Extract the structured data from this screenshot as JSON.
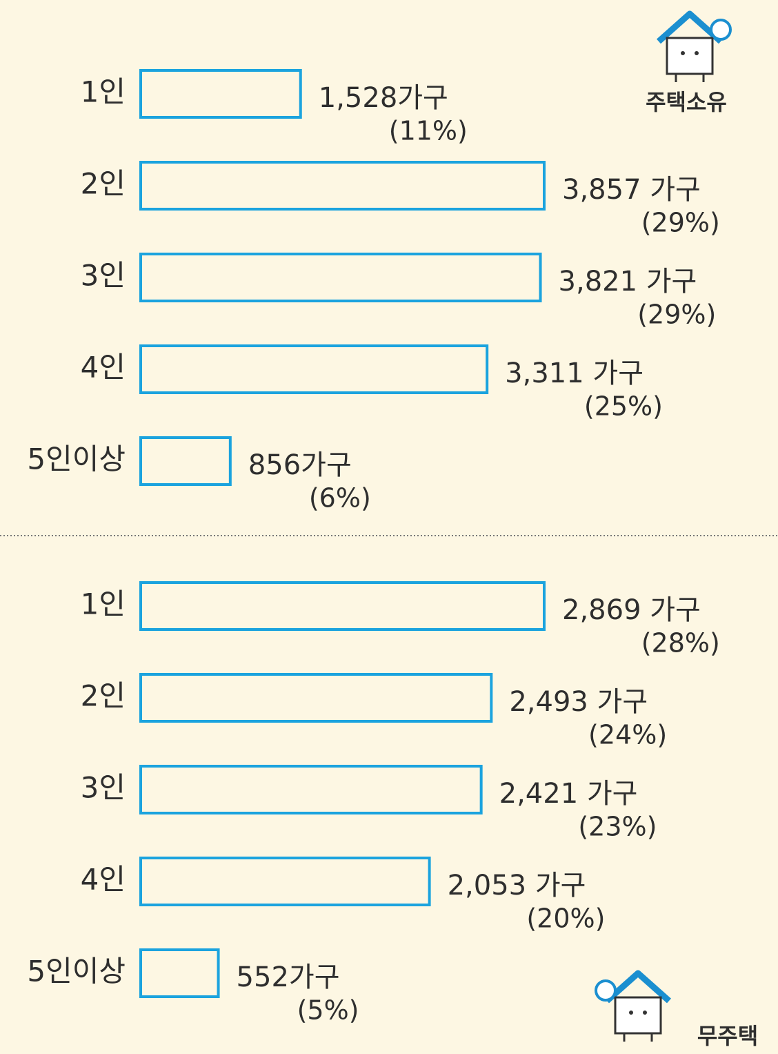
{
  "chart_data": [
    {
      "type": "bar",
      "title": "주택소유",
      "categories": [
        "1인",
        "2인",
        "3인",
        "4인",
        "5인이상"
      ],
      "values": [
        1528,
        3857,
        3821,
        3311,
        856
      ],
      "value_labels": [
        "1,528가구",
        "3,857 가구",
        "3,821 가구",
        "3,311 가구",
        "856가구"
      ],
      "percents": [
        11,
        29,
        29,
        25,
        6
      ],
      "percent_labels": [
        "(11%)",
        "(29%)",
        "(29%)",
        "(25%)",
        "(6%)"
      ],
      "color": "#1ba3de"
    },
    {
      "type": "bar",
      "title": "무주택",
      "categories": [
        "1인",
        "2인",
        "3인",
        "4인",
        "5인이상"
      ],
      "values": [
        2869,
        2493,
        2421,
        2053,
        552
      ],
      "value_labels": [
        "2,869 가구",
        "2,493 가구",
        "2,421 가구",
        "2,053 가구",
        "552가구"
      ],
      "percents": [
        28,
        24,
        23,
        20,
        5
      ],
      "percent_labels": [
        "(28%)",
        "(24%)",
        "(23%)",
        "(20%)",
        "(5%)"
      ],
      "color": "#1ba3de"
    }
  ]
}
